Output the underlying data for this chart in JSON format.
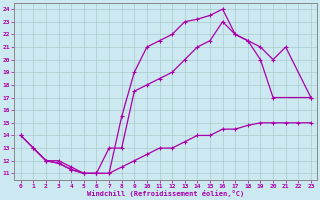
{
  "xlabel": "Windchill (Refroidissement éolien,°C)",
  "bg_color": "#cce8f0",
  "grid_color": "#aacccc",
  "line_color": "#aa00aa",
  "xlim": [
    -0.5,
    23.5
  ],
  "ylim": [
    10.5,
    24.5
  ],
  "xticks": [
    0,
    1,
    2,
    3,
    4,
    5,
    6,
    7,
    8,
    9,
    10,
    11,
    12,
    13,
    14,
    15,
    16,
    17,
    18,
    19,
    20,
    21,
    22,
    23
  ],
  "yticks": [
    11,
    12,
    13,
    14,
    15,
    16,
    17,
    18,
    19,
    20,
    21,
    22,
    23,
    24
  ],
  "line1_x": [
    0,
    1,
    2,
    3,
    4,
    5,
    6,
    7,
    8,
    9,
    10,
    11,
    12,
    13,
    14,
    15,
    16,
    17,
    18,
    19,
    20,
    23
  ],
  "line1_y": [
    14,
    13,
    12,
    11.8,
    11.3,
    11,
    11,
    11,
    15.5,
    19,
    21,
    21.5,
    22,
    23,
    23.2,
    23.5,
    24,
    22,
    21.5,
    20,
    17,
    17
  ],
  "line2_x": [
    0,
    2,
    3,
    4,
    5,
    6,
    7,
    8,
    9,
    10,
    11,
    12,
    13,
    14,
    15,
    16,
    17,
    18,
    19,
    20,
    21,
    23
  ],
  "line2_y": [
    14,
    12,
    11.8,
    11.3,
    11,
    11,
    13,
    13,
    17.5,
    18,
    18.5,
    19,
    20,
    21,
    21.5,
    23,
    22,
    21.5,
    21,
    20,
    21,
    17
  ],
  "line3_x": [
    1,
    2,
    3,
    4,
    5,
    6,
    7,
    8,
    9,
    10,
    11,
    12,
    13,
    14,
    15,
    16,
    17,
    18,
    19,
    20,
    21,
    22,
    23
  ],
  "line3_y": [
    13,
    12,
    12,
    11.5,
    11,
    11,
    11,
    11.5,
    12,
    12.5,
    13,
    13,
    13.5,
    14,
    14,
    14.5,
    14.5,
    14.8,
    15,
    15,
    15,
    15,
    15
  ]
}
